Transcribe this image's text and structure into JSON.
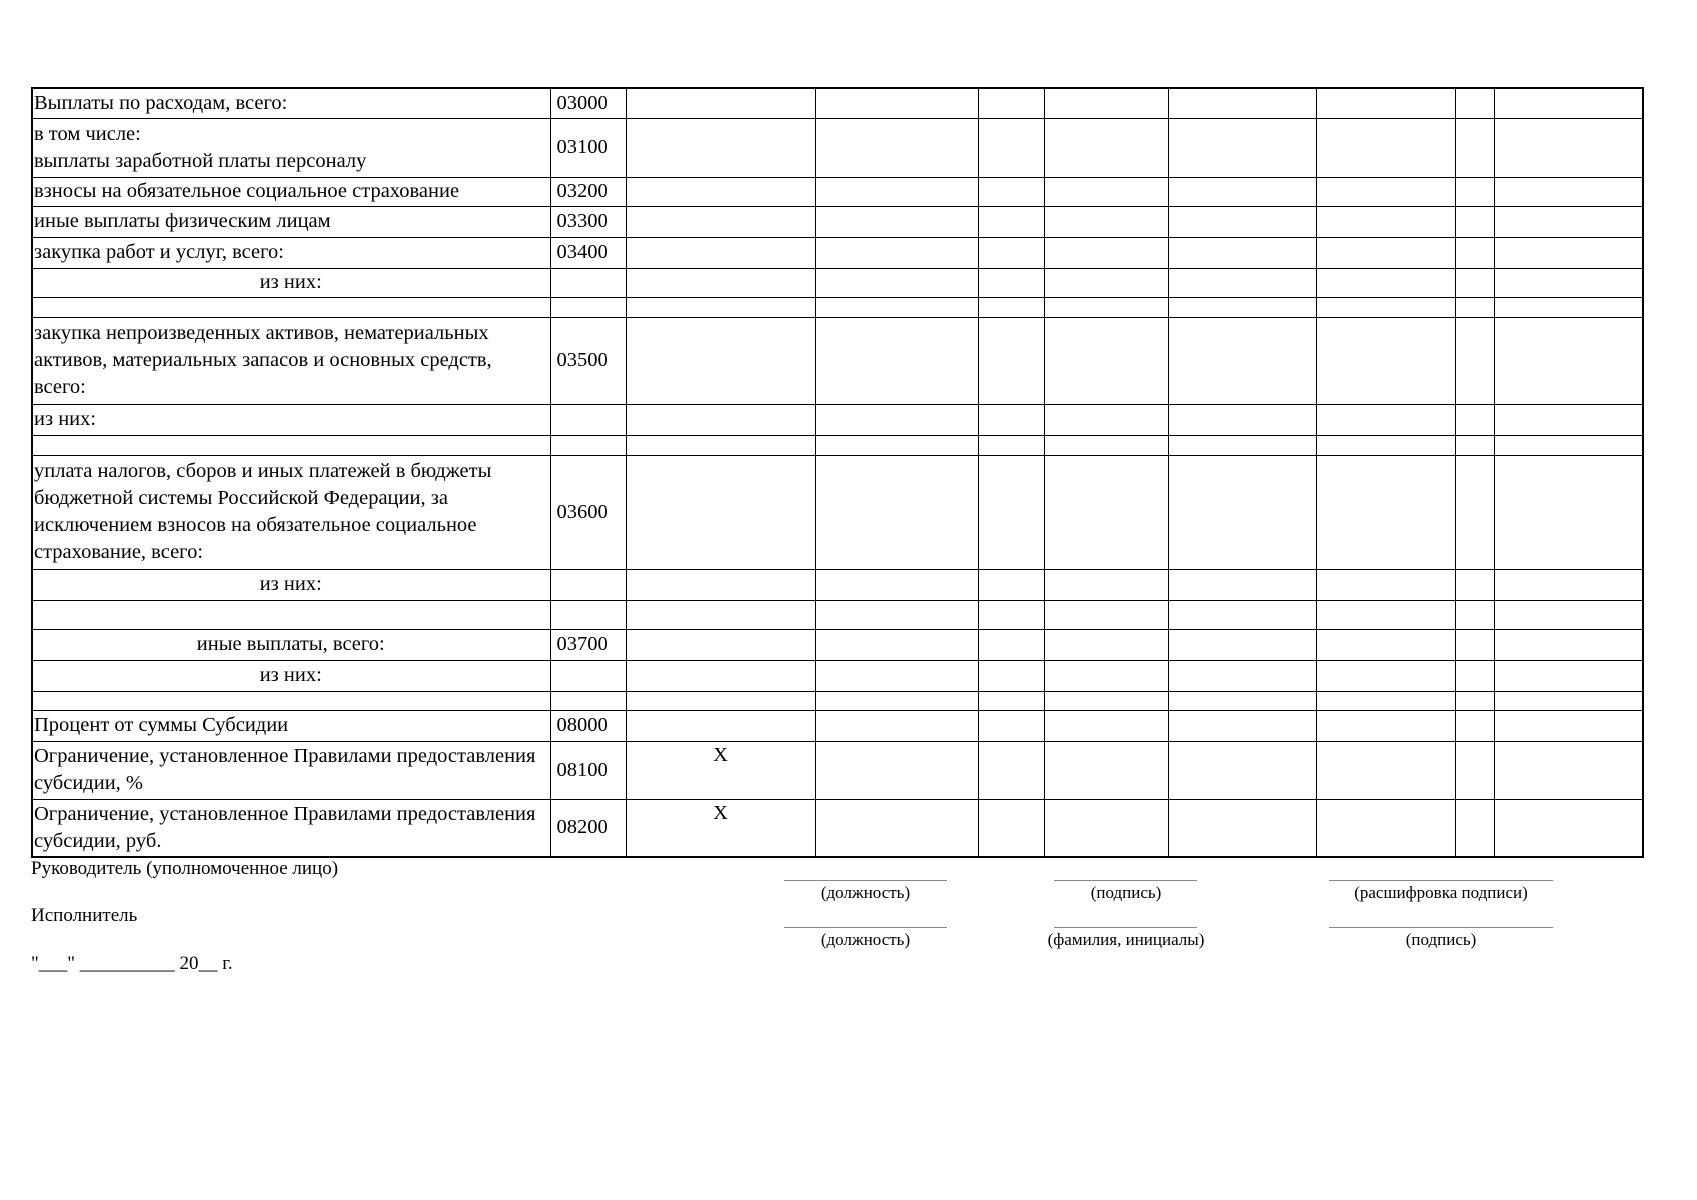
{
  "rows": [
    {
      "label": "Выплаты по расходам, всего:",
      "code": "03000",
      "align": "left",
      "x": ""
    },
    {
      "label": "в том числе:\nвыплаты заработной платы персоналу",
      "code": "03100",
      "align": "left",
      "x": ""
    },
    {
      "label": "взносы на обязательное социальное страхование",
      "code": "03200",
      "align": "left",
      "x": ""
    },
    {
      "label": "иные выплаты физическим лицам",
      "code": "03300",
      "align": "left",
      "x": ""
    },
    {
      "label": "закупка работ и услуг, всего:",
      "code": "03400",
      "align": "left",
      "x": ""
    },
    {
      "label": "из них:",
      "code": "",
      "align": "center",
      "x": ""
    },
    {
      "label": "",
      "code": "",
      "align": "left",
      "x": ""
    },
    {
      "label": "закупка непроизведенных активов, нематериальных активов, материальных запасов и основных средств, всего:",
      "code": "03500",
      "align": "left",
      "x": ""
    },
    {
      "label": "из них:",
      "code": "",
      "align": "left",
      "x": ""
    },
    {
      "label": "",
      "code": "",
      "align": "left",
      "x": ""
    },
    {
      "label": "уплата налогов, сборов и иных платежей в бюджеты бюджетной системы Российской Федерации, за исключением взносов на обязательное социальное страхование, всего:",
      "code": "03600",
      "align": "left",
      "x": ""
    },
    {
      "label": "из них:",
      "code": "",
      "align": "center",
      "x": ""
    },
    {
      "label": "",
      "code": "",
      "align": "left",
      "x": ""
    },
    {
      "label": "иные выплаты, всего:",
      "code": "03700",
      "align": "center",
      "x": ""
    },
    {
      "label": "из них:",
      "code": "",
      "align": "center",
      "x": ""
    },
    {
      "label": "",
      "code": "",
      "align": "left",
      "x": ""
    },
    {
      "label": "Процент от суммы Субсидии",
      "code": "08000",
      "align": "left",
      "x": ""
    },
    {
      "label": "Ограничение, установленное Правилами предоставления субсидии, %",
      "code": "08100",
      "align": "left",
      "x": "X"
    },
    {
      "label": "Ограничение, установленное Правилами предоставления субсидии, руб.",
      "code": "08200",
      "align": "left",
      "x": "X"
    }
  ],
  "footer": {
    "head_label": "Руководитель (уполномоченное лицо)",
    "executor_label": "Исполнитель",
    "date_line": "\"___\" __________ 20__ г.",
    "head_sign": [
      "(должность)",
      "(подпись)",
      "(расшифровка подписи)"
    ],
    "executor_sign": [
      "(должность)",
      "(фамилия, инициалы)",
      "(подпись)"
    ]
  }
}
